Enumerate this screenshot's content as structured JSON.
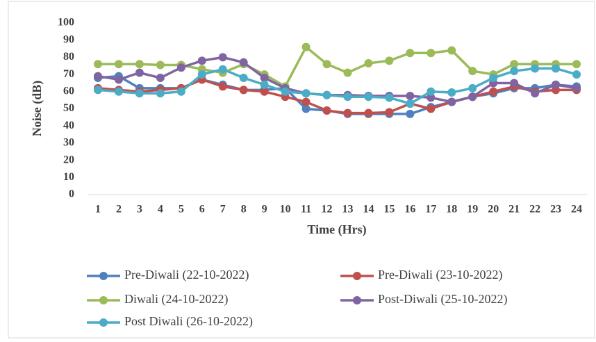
{
  "chart_data": {
    "type": "line",
    "x_label": "Time (Hrs)",
    "y_label": "Noise (dB)",
    "categories": [
      "1",
      "2",
      "3",
      "4",
      "5",
      "6",
      "7",
      "8",
      "9",
      "10",
      "11",
      "12",
      "13",
      "14",
      "15",
      "16",
      "17",
      "18",
      "19",
      "20",
      "21",
      "22",
      "23",
      "24"
    ],
    "ylim": [
      0,
      100
    ],
    "yticks": [
      0,
      10,
      20,
      30,
      40,
      50,
      60,
      70,
      80,
      90,
      100
    ],
    "legend": "bottom",
    "series": [
      {
        "name": "Pre-Diwali (22-10-2022)",
        "color": "#4f81bd",
        "values": [
          68,
          69,
          62,
          62,
          62,
          67,
          64,
          61,
          61,
          62,
          50,
          49,
          47,
          47,
          47,
          47,
          51,
          54,
          57,
          59,
          62,
          62,
          64,
          63
        ]
      },
      {
        "name": "Pre-Diwali (23-10-2022)",
        "color": "#c0504d",
        "values": [
          62,
          61,
          60,
          61,
          62,
          67,
          63,
          61,
          60,
          57,
          54,
          49,
          47.5,
          47.5,
          48,
          53,
          50,
          54,
          57,
          60,
          63,
          60,
          61,
          61
        ]
      },
      {
        "name": "Diwali (24-10-2022)",
        "color": "#9bbb59",
        "values": [
          76,
          76,
          76,
          75.5,
          75.5,
          73,
          71,
          76,
          70,
          63,
          86,
          76,
          71,
          76.5,
          78,
          82.5,
          82.5,
          84,
          72,
          70,
          76,
          76,
          76,
          76
        ]
      },
      {
        "name": "Post-Diwali (25-10-2022)",
        "color": "#8064a2",
        "values": [
          69,
          67,
          71,
          68,
          74,
          78,
          80,
          77,
          68,
          62,
          59,
          58,
          58,
          57.5,
          57.5,
          57.5,
          56.5,
          54,
          57,
          65,
          65,
          59,
          64,
          62
        ]
      },
      {
        "name": "Post Diwali (26-10-2022)",
        "color": "#4bacc6",
        "values": [
          61,
          60,
          59,
          59,
          60,
          70,
          73,
          68,
          64,
          60,
          59,
          58,
          57,
          57,
          56.5,
          53,
          60,
          59.5,
          62,
          68,
          72,
          73.5,
          73.5,
          70
        ]
      }
    ]
  }
}
